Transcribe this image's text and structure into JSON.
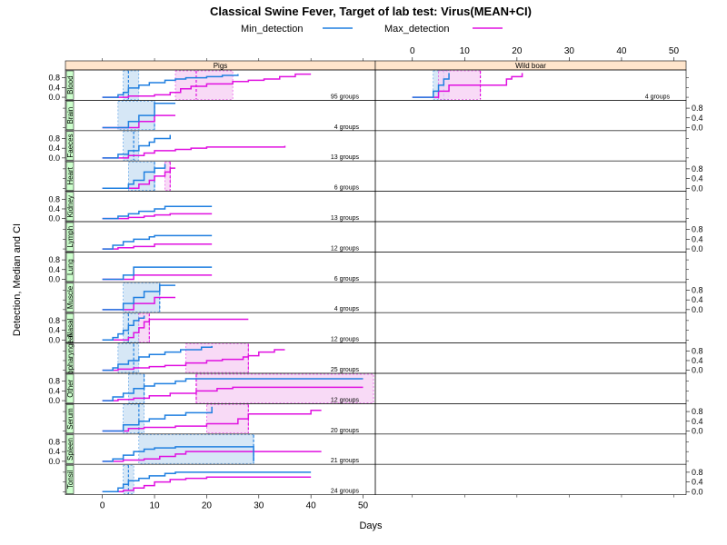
{
  "title": "Classical Swine Fever, Target of lab test: Virus(MEAN+CI)",
  "legend": [
    {
      "name": "Min_detection",
      "color": "#1f7fe0"
    },
    {
      "name": "Max_detection",
      "color": "#e010e0"
    }
  ],
  "colors": {
    "min": "#1f7fe0",
    "max": "#e010e0",
    "min_ci_fill": "#cfe3f5",
    "max_ci_fill": "#f7d4f4",
    "strip_bg": "#ffe5cc",
    "row_strip_bg": "#ccffcc"
  },
  "chart_data": {
    "type": "line",
    "xlabel": "Days",
    "ylabel": "Detection, Median and CI",
    "xlim": [
      -5,
      52
    ],
    "ylim": [
      -0.05,
      1.05
    ],
    "x_ticks": [
      0,
      10,
      20,
      30,
      40,
      50
    ],
    "y_ticks": [
      0.0,
      0.4,
      0.8
    ],
    "y_tick_labels": [
      "0.0",
      "0.4",
      "0.8"
    ],
    "columns": [
      "Pigs",
      "Wild boar"
    ],
    "rows": [
      "Blood",
      "Brain",
      "Faeces",
      "Heart",
      "Kidney",
      "Lymph",
      "Lung",
      "Muscle",
      "Nasal",
      "Oropharyngeal",
      "Other",
      "Serum",
      "Spleen",
      "Tonsil"
    ],
    "row_strip_labels": [
      "Blood",
      "Brain",
      "Faeces",
      "Heart",
      "Kidney",
      "Lymph",
      "Lung",
      "Muscle",
      "Nasal",
      "Oropharyngeal",
      "Other",
      "Serum",
      "Spleen",
      "Tonsil"
    ],
    "panels": [
      {
        "row": "Blood",
        "col": "Pigs",
        "groups_label": "95 groups",
        "min": [
          [
            0,
            0
          ],
          [
            3,
            0.1
          ],
          [
            4,
            0.2
          ],
          [
            5,
            0.38
          ],
          [
            7,
            0.5
          ],
          [
            9,
            0.6
          ],
          [
            12,
            0.7
          ],
          [
            14,
            0.75
          ],
          [
            16,
            0.8
          ],
          [
            20,
            0.85
          ],
          [
            23,
            0.9
          ],
          [
            26,
            0.95
          ]
        ],
        "max": [
          [
            0,
            0
          ],
          [
            5,
            0.05
          ],
          [
            10,
            0.1
          ],
          [
            13,
            0.2
          ],
          [
            15,
            0.35
          ],
          [
            17,
            0.45
          ],
          [
            20,
            0.55
          ],
          [
            25,
            0.65
          ],
          [
            28,
            0.7
          ],
          [
            31,
            0.75
          ],
          [
            34,
            0.85
          ],
          [
            37,
            0.95
          ],
          [
            40,
            0.95
          ]
        ],
        "min_ci": {
          "lo": 4,
          "hi": 7,
          "med": 5
        },
        "max_ci": {
          "lo": 14,
          "hi": 25,
          "med": 18
        }
      },
      {
        "row": "Blood",
        "col": "Wild boar",
        "groups_label": "4 groups",
        "min": [
          [
            0,
            0
          ],
          [
            4,
            0.25
          ],
          [
            5,
            0.5
          ],
          [
            6,
            0.75
          ],
          [
            7,
            1.0
          ]
        ],
        "max": [
          [
            0,
            0
          ],
          [
            5,
            0.25
          ],
          [
            7,
            0.5
          ],
          [
            13,
            0.5
          ],
          [
            18,
            0.75
          ],
          [
            19,
            0.85
          ],
          [
            21,
            1.0
          ]
        ],
        "min_ci": {
          "lo": 4,
          "hi": 7,
          "med": 6
        },
        "max_ci": {
          "lo": 5,
          "hi": 13,
          "med": 13
        }
      },
      {
        "row": "Brain",
        "col": "Pigs",
        "groups_label": "4 groups",
        "min": [
          [
            0,
            0
          ],
          [
            5,
            0.25
          ],
          [
            7,
            0.5
          ],
          [
            10,
            1.0
          ],
          [
            14,
            1.0
          ]
        ],
        "max": [
          [
            0,
            0
          ],
          [
            7,
            0.25
          ],
          [
            10,
            0.5
          ],
          [
            14,
            0.5
          ]
        ],
        "min_ci": {
          "lo": 3,
          "hi": 10,
          "med": 10
        },
        "max_ci": null
      },
      {
        "row": "Faeces",
        "col": "Pigs",
        "groups_label": "13 groups",
        "min": [
          [
            0,
            0
          ],
          [
            3,
            0.15
          ],
          [
            5,
            0.3
          ],
          [
            7,
            0.5
          ],
          [
            9,
            0.65
          ],
          [
            10,
            0.8
          ],
          [
            13,
            0.95
          ]
        ],
        "max": [
          [
            0,
            0
          ],
          [
            5,
            0.1
          ],
          [
            8,
            0.2
          ],
          [
            10,
            0.3
          ],
          [
            14,
            0.35
          ],
          [
            17,
            0.4
          ],
          [
            20,
            0.45
          ],
          [
            35,
            0.5
          ]
        ],
        "min_ci": {
          "lo": 4,
          "hi": 7,
          "med": 6
        },
        "max_ci": null
      },
      {
        "row": "Heart",
        "col": "Pigs",
        "groups_label": "6 groups",
        "min": [
          [
            0,
            0
          ],
          [
            5,
            0.17
          ],
          [
            6,
            0.33
          ],
          [
            8,
            0.67
          ],
          [
            10,
            0.83
          ],
          [
            12,
            1.0
          ]
        ],
        "max": [
          [
            0,
            0
          ],
          [
            7,
            0.17
          ],
          [
            9,
            0.33
          ],
          [
            10,
            0.5
          ],
          [
            12,
            0.67
          ],
          [
            13,
            0.83
          ],
          [
            14,
            0.83
          ]
        ],
        "min_ci": {
          "lo": 5,
          "hi": 10,
          "med": 10
        },
        "max_ci": {
          "lo": 12,
          "hi": 13,
          "med": 13
        }
      },
      {
        "row": "Kidney",
        "col": "Pigs",
        "groups_label": "13 groups",
        "min": [
          [
            0,
            0
          ],
          [
            3,
            0.1
          ],
          [
            5,
            0.2
          ],
          [
            7,
            0.3
          ],
          [
            10,
            0.4
          ],
          [
            12,
            0.5
          ],
          [
            21,
            0.5
          ]
        ],
        "max": [
          [
            0,
            0
          ],
          [
            5,
            0.05
          ],
          [
            8,
            0.1
          ],
          [
            10,
            0.15
          ],
          [
            13,
            0.2
          ],
          [
            21,
            0.2
          ]
        ],
        "min_ci": null,
        "max_ci": null
      },
      {
        "row": "Lymph",
        "col": "Pigs",
        "groups_label": "12 groups",
        "min": [
          [
            0,
            0
          ],
          [
            2,
            0.15
          ],
          [
            4,
            0.3
          ],
          [
            6,
            0.4
          ],
          [
            9,
            0.5
          ],
          [
            10,
            0.55
          ],
          [
            21,
            0.55
          ]
        ],
        "max": [
          [
            0,
            0
          ],
          [
            3,
            0.05
          ],
          [
            6,
            0.1
          ],
          [
            10,
            0.2
          ],
          [
            21,
            0.2
          ]
        ],
        "min_ci": null,
        "max_ci": null
      },
      {
        "row": "Lung",
        "col": "Pigs",
        "groups_label": "6 groups",
        "min": [
          [
            0,
            0
          ],
          [
            4,
            0.17
          ],
          [
            6,
            0.5
          ],
          [
            21,
            0.5
          ]
        ],
        "max": [
          [
            0,
            0
          ],
          [
            6,
            0.17
          ],
          [
            21,
            0.17
          ]
        ],
        "min_ci": null,
        "max_ci": null
      },
      {
        "row": "Muscle",
        "col": "Pigs",
        "groups_label": "4 groups",
        "min": [
          [
            0,
            0
          ],
          [
            4,
            0.25
          ],
          [
            6,
            0.5
          ],
          [
            8,
            0.75
          ],
          [
            11,
            1.0
          ],
          [
            14,
            1.0
          ]
        ],
        "max": [
          [
            0,
            0
          ],
          [
            6,
            0.25
          ],
          [
            10,
            0.5
          ],
          [
            14,
            0.5
          ]
        ],
        "min_ci": {
          "lo": 4,
          "hi": 11,
          "med": 11
        },
        "max_ci": null
      },
      {
        "row": "Nasal",
        "col": "Pigs",
        "groups_label": "12 groups",
        "min": [
          [
            0,
            0
          ],
          [
            2,
            0.1
          ],
          [
            3,
            0.25
          ],
          [
            4,
            0.4
          ],
          [
            5,
            0.6
          ],
          [
            6,
            0.8
          ],
          [
            7,
            0.9
          ],
          [
            8,
            1.0
          ]
        ],
        "max": [
          [
            0,
            0
          ],
          [
            5,
            0.1
          ],
          [
            6,
            0.3
          ],
          [
            7,
            0.5
          ],
          [
            8,
            0.75
          ],
          [
            9,
            0.85
          ],
          [
            28,
            0.85
          ]
        ],
        "min_ci": {
          "lo": 4,
          "hi": 7,
          "med": 5
        },
        "max_ci": {
          "lo": 7,
          "hi": 9,
          "med": 9
        }
      },
      {
        "row": "Oropharyngeal",
        "col": "Pigs",
        "groups_label": "25 groups",
        "min": [
          [
            0,
            0
          ],
          [
            2,
            0.1
          ],
          [
            3,
            0.25
          ],
          [
            5,
            0.4
          ],
          [
            7,
            0.55
          ],
          [
            9,
            0.65
          ],
          [
            12,
            0.75
          ],
          [
            15,
            0.85
          ],
          [
            19,
            0.95
          ],
          [
            21,
            1.0
          ]
        ],
        "max": [
          [
            0,
            0
          ],
          [
            3,
            0.05
          ],
          [
            6,
            0.1
          ],
          [
            9,
            0.15
          ],
          [
            12,
            0.2
          ],
          [
            16,
            0.3
          ],
          [
            20,
            0.4
          ],
          [
            23,
            0.45
          ],
          [
            27,
            0.55
          ],
          [
            28,
            0.6
          ],
          [
            30,
            0.75
          ],
          [
            33,
            0.85
          ],
          [
            35,
            0.85
          ]
        ],
        "min_ci": {
          "lo": 3,
          "hi": 7,
          "med": 6
        },
        "max_ci": {
          "lo": 16,
          "hi": 28,
          "med": 28
        }
      },
      {
        "row": "Other",
        "col": "Pigs",
        "groups_label": "12 groups",
        "min": [
          [
            0,
            0
          ],
          [
            2,
            0.15
          ],
          [
            4,
            0.3
          ],
          [
            6,
            0.5
          ],
          [
            8,
            0.6
          ],
          [
            10,
            0.7
          ],
          [
            14,
            0.8
          ],
          [
            16,
            0.9
          ],
          [
            50,
            0.9
          ]
        ],
        "max": [
          [
            0,
            0
          ],
          [
            3,
            0.05
          ],
          [
            6,
            0.1
          ],
          [
            9,
            0.2
          ],
          [
            13,
            0.3
          ],
          [
            18,
            0.4
          ],
          [
            22,
            0.5
          ],
          [
            25,
            0.55
          ],
          [
            50,
            0.55
          ]
        ],
        "min_ci": {
          "lo": 5,
          "hi": 8,
          "med": 8
        },
        "max_ci": {
          "lo": 18,
          "hi": 52,
          "med": 18
        }
      },
      {
        "row": "Serum",
        "col": "Pigs",
        "groups_label": "20 groups",
        "min": [
          [
            0,
            0
          ],
          [
            4,
            0.25
          ],
          [
            7,
            0.4
          ],
          [
            9,
            0.5
          ],
          [
            12,
            0.65
          ],
          [
            16,
            0.75
          ],
          [
            21,
            0.9
          ],
          [
            21,
            1.0
          ]
        ],
        "max": [
          [
            0,
            0
          ],
          [
            5,
            0.1
          ],
          [
            8,
            0.15
          ],
          [
            14,
            0.2
          ],
          [
            20,
            0.3
          ],
          [
            26,
            0.5
          ],
          [
            28,
            0.7
          ],
          [
            40,
            0.85
          ],
          [
            42,
            0.85
          ]
        ],
        "min_ci": {
          "lo": 4,
          "hi": 8,
          "med": 7
        },
        "max_ci": {
          "lo": 20,
          "hi": 28,
          "med": 28
        }
      },
      {
        "row": "Spleen",
        "col": "Pigs",
        "groups_label": "21 groups",
        "min": [
          [
            0,
            0
          ],
          [
            2,
            0.1
          ],
          [
            4,
            0.25
          ],
          [
            6,
            0.4
          ],
          [
            8,
            0.5
          ],
          [
            10,
            0.55
          ],
          [
            14,
            0.6
          ],
          [
            29,
            0.6
          ],
          [
            29,
            0.0
          ]
        ],
        "max": [
          [
            0,
            0
          ],
          [
            4,
            0.05
          ],
          [
            8,
            0.1
          ],
          [
            11,
            0.2
          ],
          [
            14,
            0.3
          ],
          [
            16,
            0.4
          ],
          [
            42,
            0.4
          ]
        ],
        "min_ci": {
          "lo": 7,
          "hi": 29,
          "med": 29
        },
        "max_ci": null
      },
      {
        "row": "Tonsil",
        "col": "Pigs",
        "groups_label": "24 groups",
        "min": [
          [
            0,
            0
          ],
          [
            3,
            0.15
          ],
          [
            4,
            0.3
          ],
          [
            5,
            0.45
          ],
          [
            7,
            0.55
          ],
          [
            9,
            0.65
          ],
          [
            12,
            0.75
          ],
          [
            14,
            0.8
          ],
          [
            40,
            0.8
          ]
        ],
        "max": [
          [
            0,
            0
          ],
          [
            4,
            0.05
          ],
          [
            6,
            0.15
          ],
          [
            8,
            0.25
          ],
          [
            10,
            0.4
          ],
          [
            13,
            0.5
          ],
          [
            16,
            0.55
          ],
          [
            20,
            0.6
          ],
          [
            40,
            0.6
          ]
        ],
        "min_ci": {
          "lo": 4,
          "hi": 6,
          "med": 5
        },
        "max_ci": null
      }
    ]
  }
}
